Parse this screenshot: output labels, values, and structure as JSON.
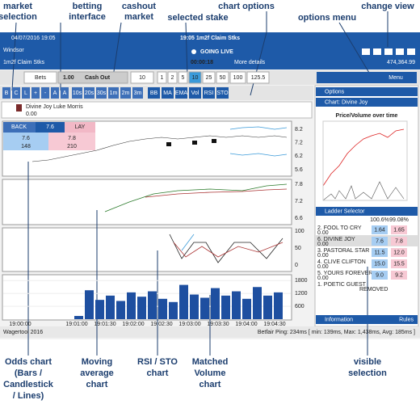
{
  "annotations": {
    "top": [
      "market",
      "selection",
      "betting",
      "interface",
      "cashout",
      "market",
      "selected stake",
      "chart options",
      "options menu",
      "change view"
    ],
    "bottom": [
      "Odds chart",
      "(Bars /",
      "Candlestick",
      "/ Lines)",
      "Moving",
      "average",
      "chart",
      "RSI / STO",
      "chart",
      "Matched",
      "Volume",
      "chart",
      "visible",
      "selection"
    ]
  },
  "header": {
    "date": "04/07/2016 19:05",
    "title": "19:05 1m2f Claim Stks",
    "venue": "Windsor",
    "market": "1m2f Claim Stks",
    "status": "GOING LIVE",
    "countdown": "00:00:18",
    "details": "More details",
    "balance": "474,364.99"
  },
  "toolbar": {
    "bets": "Bets",
    "amount": "1.00",
    "cashout": "Cash Out",
    "stake_input": "10",
    "stakes": [
      "1",
      "2",
      "5",
      "10",
      "25",
      "50",
      "100",
      "125.5"
    ],
    "buttons": [
      "B",
      "C",
      "L",
      "+",
      "-",
      "A",
      "A"
    ],
    "intervals": [
      "10s",
      "20s",
      "30s",
      "1m",
      "2m",
      "3m"
    ],
    "indicators": [
      "BB",
      "MA",
      "EMA",
      "Vol",
      "RSI",
      "STO"
    ],
    "menu": "Menu"
  },
  "runner": {
    "name": "Divine Joy",
    "jockey": "Luke Morris",
    "pl": "0.00"
  },
  "ladder": {
    "back": "BACK",
    "last": "7.6",
    "lay": "LAY",
    "back_price": "7.6",
    "back_size": "148",
    "lay_price": "7.8",
    "lay_size": "210"
  },
  "charts": {
    "odds_axis": [
      "8.2",
      "7.2",
      "6.2",
      "5.6"
    ],
    "ma_axis": [
      "7.8",
      "7.2",
      "6.6"
    ],
    "rsi_axis": [
      "100",
      "50",
      "0"
    ],
    "volume": {
      "values": [
        150,
        1350,
        900,
        1100,
        850,
        1250,
        1050,
        1300,
        950,
        800,
        1600,
        1150,
        1000,
        1450,
        1100,
        1300,
        950,
        1500,
        1100,
        1250
      ],
      "ylim": [
        0,
        2000
      ],
      "yticks": [
        600,
        1200,
        1800
      ]
    },
    "times": [
      "19:00:00",
      "19:01:00",
      "19:01:30",
      "19:02:00",
      "19:02:30",
      "19:03:00",
      "19:03:30",
      "19:04:00",
      "19:04:30"
    ]
  },
  "options": {
    "title": "Options",
    "chart_title": "Chart: Divine Joy",
    "chart_heading": "Price/Volume over time",
    "ladder_title": "Ladder Selector",
    "book_back": "100.6%",
    "book_lay": "99.08%",
    "runners": [
      {
        "name": "2. FOOL TO CRY",
        "pl": "0.00",
        "back": "1.64",
        "lay": "1.65"
      },
      {
        "name": "6. DIVINE JOY",
        "pl": "0.00",
        "back": "7.6",
        "lay": "7.8"
      },
      {
        "name": "3. PASTORAL STAR",
        "pl": "0.00",
        "back": "11.5",
        "lay": "12.0"
      },
      {
        "name": "4. CLIVE CLIFTON",
        "pl": "0.00",
        "back": "15.0",
        "lay": "15.5"
      },
      {
        "name": "5. YOURS FOREVER",
        "pl": "0.00",
        "back": "9.0",
        "lay": "9.2"
      },
      {
        "name": "1. POETIC GUEST",
        "status": "REMOVED"
      }
    ],
    "info_title": "Information",
    "rules": "Rules"
  },
  "footer": {
    "brand": "Wagertool 2016",
    "ping": "Betfair Ping: 234ms [ min: 139ms, Max: 1,438ms, Avg: 185ms ]"
  }
}
